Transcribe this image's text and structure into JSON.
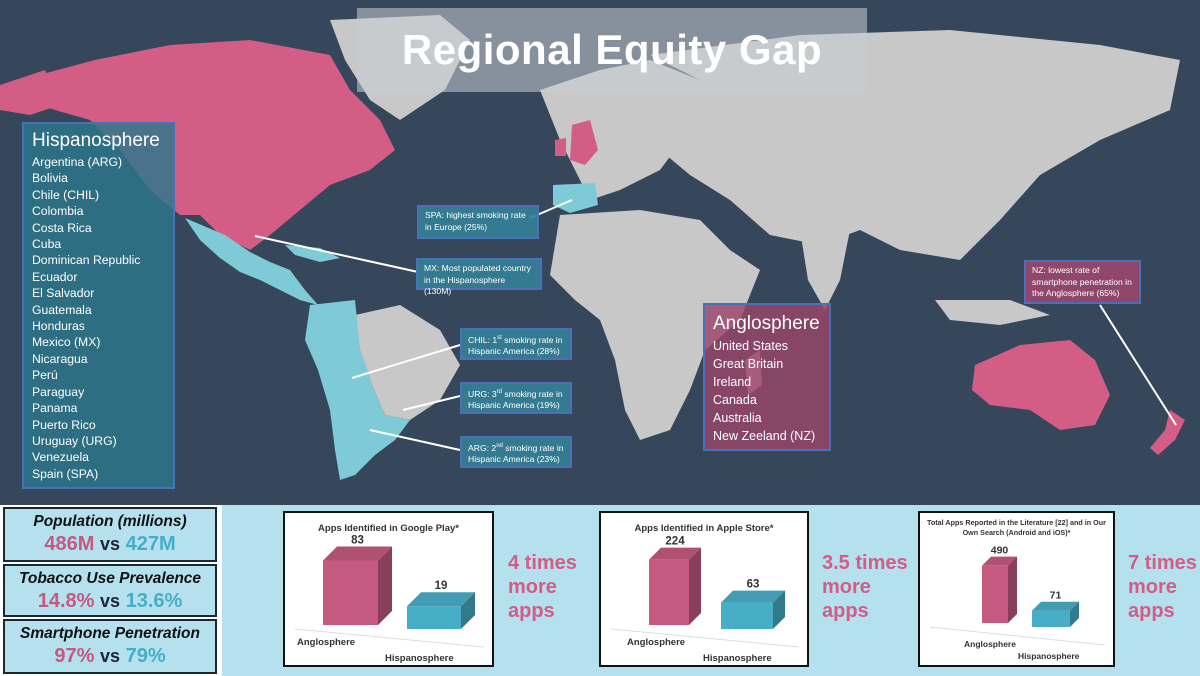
{
  "title": "Regional Equity Gap",
  "hispanosphere": {
    "header": "Hispanosphere",
    "countries": [
      "Argentina (ARG)",
      "Bolivia",
      "Chile (CHIL)",
      "Colombia",
      "Costa Rica",
      "Cuba",
      "Dominican Republic",
      "Ecuador",
      "El Salvador",
      "Guatemala",
      "Honduras",
      "Mexico (MX)",
      "Nicaragua",
      "Perú",
      "Paraguay",
      "Panama",
      "Puerto Rico",
      "Uruguay (URG)",
      "Venezuela",
      "Spain (SPA)"
    ]
  },
  "anglosphere": {
    "header": "Anglosphere",
    "countries": [
      "United States",
      "Great Britain",
      "Ireland",
      "Canada",
      "Australia",
      "New Zeeland (NZ)"
    ]
  },
  "callouts": {
    "spa": "SPA: highest smoking rate in Europe (25%)",
    "mx": "MX: Most populated country in the Hispanosphere (130M)",
    "chil_a": "CHIL: 1",
    "chil_sup": "st",
    "chil_b": " smoking rate in Hispanic America (28%)",
    "urg_a": "URG: 3",
    "urg_sup": "rd",
    "urg_b": " smoking rate in Hispanic America (19%)",
    "arg_a": "ARG: 2",
    "arg_sup": "nd",
    "arg_b": " smoking rate in Hispanic America (23%)",
    "nz": "NZ: lowest rate of smartphone penetration in the Anglosphere (65%)"
  },
  "stats": {
    "population": {
      "label": "Population (millions)",
      "anglo": "486M",
      "vs": "vs",
      "hispano": "427M"
    },
    "tobacco": {
      "label": "Tobacco Use Prevalence",
      "anglo": "14.8%",
      "vs": "vs",
      "hispano": "13.6%"
    },
    "smartphone": {
      "label": "Smartphone Penetration",
      "anglo": "97%",
      "vs": "vs",
      "hispano": "79%"
    }
  },
  "colors": {
    "anglo": "#c45a80",
    "hispano": "#47aec7",
    "ocean": "#36475b",
    "land": "#c8c8c8"
  },
  "chart_data": [
    {
      "type": "bar",
      "title": "Apps Identified in Google Play*",
      "categories": [
        "Anglosphere",
        "Hispanosphere"
      ],
      "values": [
        83,
        19
      ],
      "ylim": [
        0,
        90
      ],
      "annotation": [
        "4 times",
        "more",
        "apps"
      ]
    },
    {
      "type": "bar",
      "title": "Apps Identified in Apple Store*",
      "categories": [
        "Anglosphere",
        "Hispanosphere"
      ],
      "values": [
        224,
        63
      ],
      "ylim": [
        0,
        240
      ],
      "annotation": [
        "3.5 times",
        "more",
        "apps"
      ]
    },
    {
      "type": "bar",
      "title": [
        "Total Apps Reported in the Literature [22] and in Our",
        "Own Search (Android and iOS)*"
      ],
      "categories": [
        "Anglosphere",
        "Hispanosphere"
      ],
      "values": [
        490,
        71
      ],
      "ylim": [
        0,
        530
      ],
      "annotation": [
        "7 times",
        "more",
        "apps"
      ]
    }
  ]
}
